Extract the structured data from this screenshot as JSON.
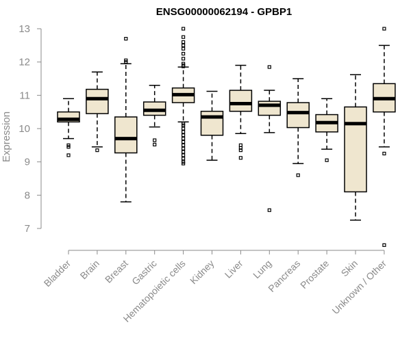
{
  "chart_data": {
    "type": "box",
    "title": "ENSG00000062194 - GPBP1",
    "xlabel": "",
    "ylabel": "Expression",
    "ylim": [
      6.5,
      13.0
    ],
    "yticks": [
      7,
      8,
      9,
      10,
      11,
      12,
      13
    ],
    "grid": false,
    "legend": "none",
    "colors": {
      "box_fill": "#efe6cf",
      "box_stroke": "#000000",
      "axis": "#8a8a8a",
      "median": "#000000"
    },
    "categories": [
      "Bladder",
      "Brain",
      "Breast",
      "Gastric",
      "Hematopoietic cells",
      "Kidney",
      "Liver",
      "Lung",
      "Pancreas",
      "Prostate",
      "Skin",
      "Unknown / Other"
    ],
    "boxes": [
      {
        "category": "Bladder",
        "whisker_low": 9.7,
        "q1": 10.2,
        "median": 10.28,
        "q3": 10.5,
        "whisker_high": 10.9,
        "outliers": [
          9.5,
          9.45,
          9.2
        ]
      },
      {
        "category": "Brain",
        "whisker_low": 9.45,
        "q1": 10.45,
        "median": 10.9,
        "q3": 11.18,
        "whisker_high": 11.7,
        "outliers": [
          9.35
        ]
      },
      {
        "category": "Breast",
        "whisker_low": 7.8,
        "q1": 9.27,
        "median": 9.7,
        "q3": 10.35,
        "whisker_high": 11.95,
        "outliers": [
          12.7,
          12.05,
          12.0
        ]
      },
      {
        "category": "Gastric",
        "whisker_low": 10.05,
        "q1": 10.4,
        "median": 10.55,
        "q3": 10.8,
        "whisker_high": 11.3,
        "outliers": [
          9.65,
          9.52
        ]
      },
      {
        "category": "Hematopoietic cells",
        "whisker_low": 10.2,
        "q1": 10.78,
        "median": 11.02,
        "q3": 11.22,
        "whisker_high": 11.85,
        "outliers": [
          13.0,
          12.75,
          12.6,
          12.5,
          12.4,
          12.25,
          12.1,
          11.95,
          11.9,
          11.87,
          10.15,
          10.1,
          10.0,
          9.9,
          9.8,
          9.7,
          9.6,
          9.5,
          9.4,
          9.3,
          9.2,
          9.1,
          9.0,
          8.95
        ]
      },
      {
        "category": "Kidney",
        "whisker_low": 9.05,
        "q1": 9.8,
        "median": 10.35,
        "q3": 10.52,
        "whisker_high": 11.12,
        "outliers": []
      },
      {
        "category": "Liver",
        "whisker_low": 9.85,
        "q1": 10.52,
        "median": 10.75,
        "q3": 11.15,
        "whisker_high": 11.9,
        "outliers": [
          9.5,
          9.42,
          9.35,
          9.12
        ]
      },
      {
        "category": "Lung",
        "whisker_low": 9.88,
        "q1": 10.4,
        "median": 10.7,
        "q3": 10.82,
        "whisker_high": 11.15,
        "outliers": [
          11.85,
          7.55
        ]
      },
      {
        "category": "Pancreas",
        "whisker_low": 8.95,
        "q1": 10.03,
        "median": 10.48,
        "q3": 10.78,
        "whisker_high": 11.5,
        "outliers": [
          8.6
        ]
      },
      {
        "category": "Prostate",
        "whisker_low": 9.38,
        "q1": 9.9,
        "median": 10.18,
        "q3": 10.42,
        "whisker_high": 10.9,
        "outliers": [
          9.05
        ]
      },
      {
        "category": "Skin",
        "whisker_low": 7.25,
        "q1": 8.1,
        "median": 10.15,
        "q3": 10.65,
        "whisker_high": 11.62,
        "outliers": []
      },
      {
        "category": "Unknown / Other",
        "whisker_low": 9.45,
        "q1": 10.5,
        "median": 10.9,
        "q3": 11.35,
        "whisker_high": 12.5,
        "outliers": [
          13.0,
          9.25,
          6.5
        ]
      }
    ]
  }
}
